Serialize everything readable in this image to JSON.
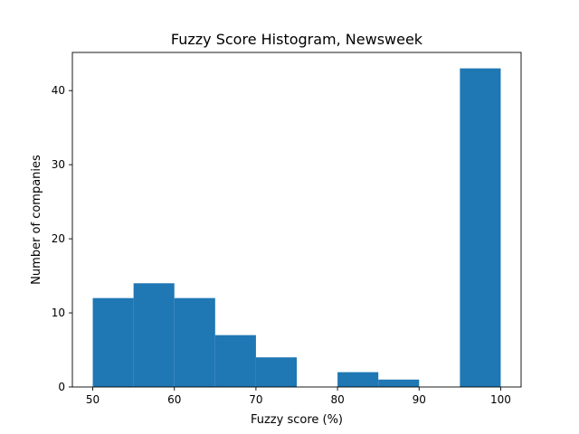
{
  "chart_data": {
    "type": "bar",
    "title": "Fuzzy Score Histogram, Newsweek",
    "xlabel": "Fuzzy score (%)",
    "ylabel": "Number of companies",
    "bins": [
      {
        "start": 50,
        "end": 55,
        "count": 12
      },
      {
        "start": 55,
        "end": 60,
        "count": 14
      },
      {
        "start": 60,
        "end": 65,
        "count": 12
      },
      {
        "start": 65,
        "end": 70,
        "count": 7
      },
      {
        "start": 70,
        "end": 75,
        "count": 4
      },
      {
        "start": 75,
        "end": 80,
        "count": 0
      },
      {
        "start": 80,
        "end": 85,
        "count": 2
      },
      {
        "start": 85,
        "end": 90,
        "count": 1
      },
      {
        "start": 90,
        "end": 95,
        "count": 0
      },
      {
        "start": 95,
        "end": 100,
        "count": 43
      }
    ],
    "xlim": [
      47.5,
      102.5
    ],
    "ylim": [
      0,
      45.15
    ],
    "xticks": [
      50,
      60,
      70,
      80,
      90,
      100
    ],
    "yticks": [
      0,
      10,
      20,
      30,
      40
    ],
    "bar_color": "#1f77b4",
    "grid": false,
    "legend": false
  }
}
